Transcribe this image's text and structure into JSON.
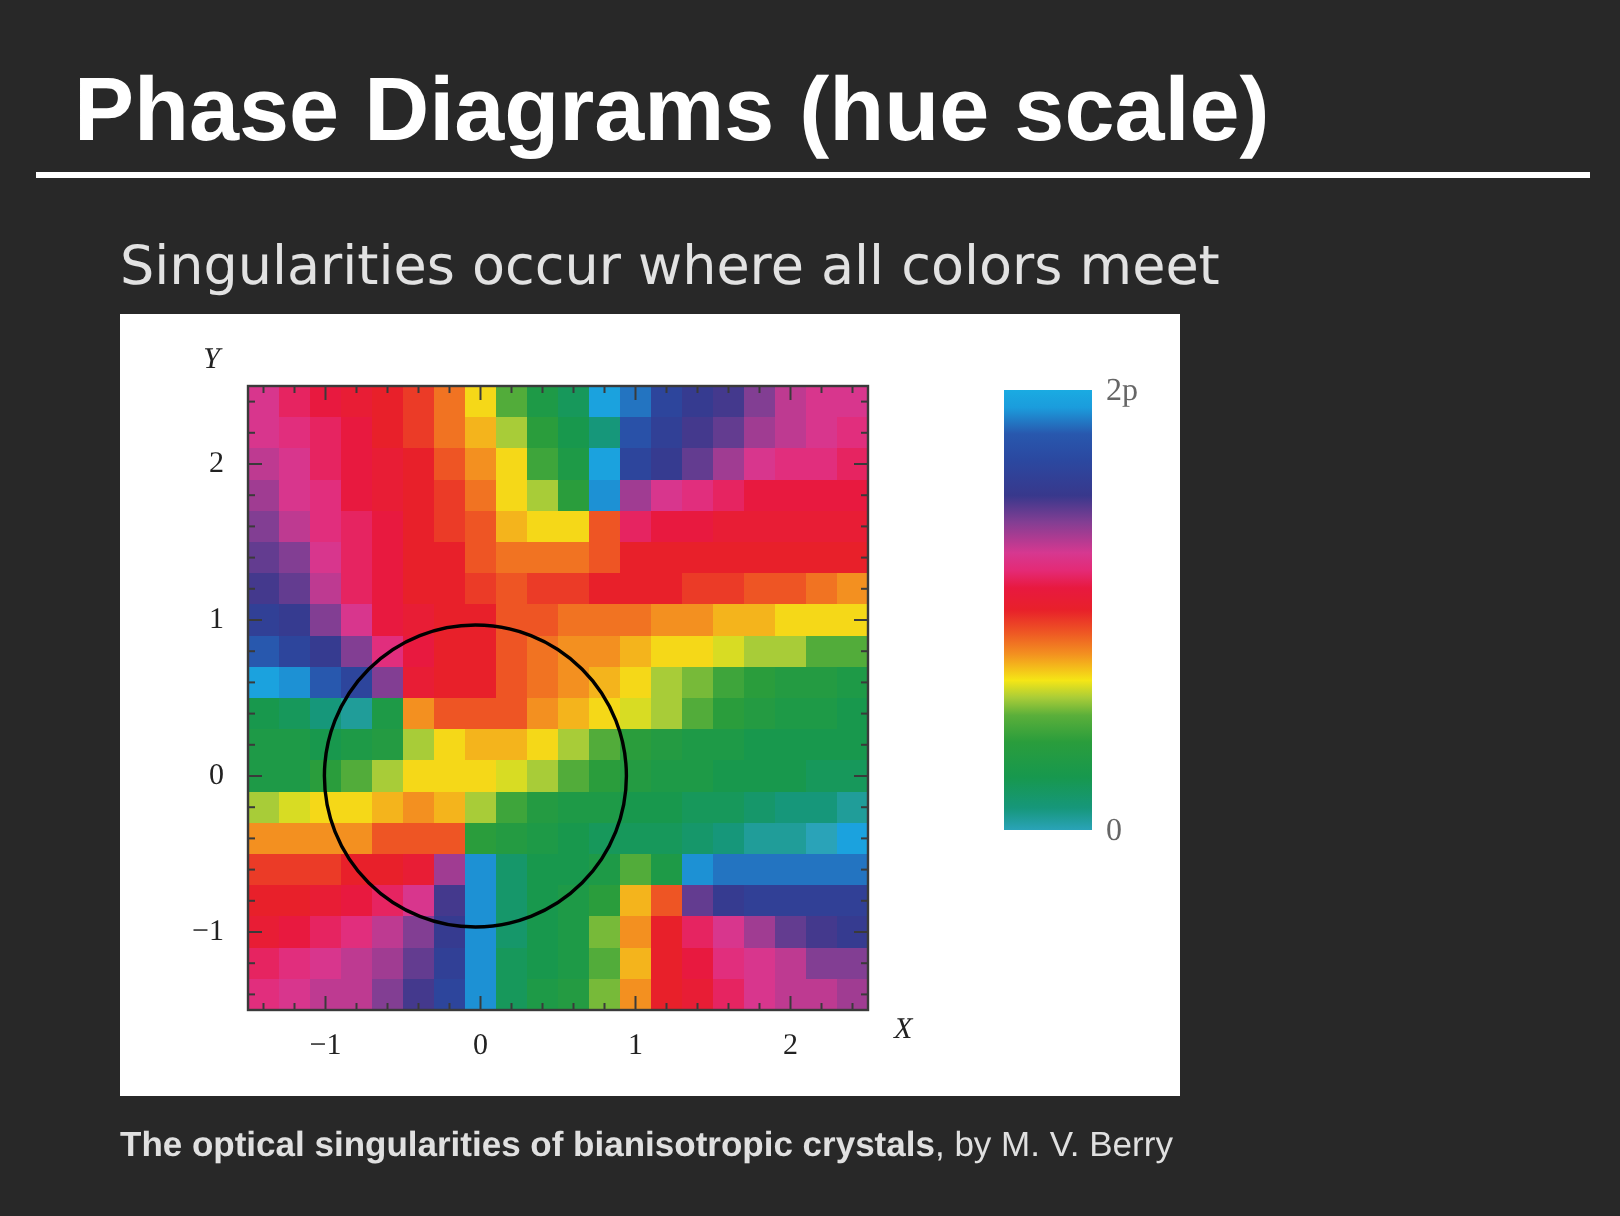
{
  "chart_data": {
    "type": "heatmap",
    "title": "Phase Diagrams (hue scale)",
    "subtitle": "Singularities occur where all colors meet",
    "xlabel": "X",
    "ylabel": "Y",
    "annotations": [
      "The optical singularities of bianisotropic crystals",
      ", by M. V. Berry"
    ],
    "xlim": [
      -1.5,
      2.5
    ],
    "ylim": [
      -1.5,
      2.5
    ],
    "xticks": [
      {
        "value": -1.4,
        "label": null
      },
      {
        "value": -1.2,
        "label": null
      },
      -1,
      {
        "value": -0.8,
        "label": null
      },
      {
        "value": -0.6,
        "label": null
      },
      {
        "value": -0.4,
        "label": null
      },
      {
        "value": -0.2,
        "label": null
      },
      0,
      {
        "value": 0.2,
        "label": null
      },
      {
        "value": 0.4,
        "label": null
      },
      {
        "value": 0.6,
        "label": null
      },
      {
        "value": 0.8,
        "label": null
      },
      1,
      {
        "value": 1.2,
        "label": null
      },
      {
        "value": 1.4,
        "label": null
      },
      {
        "value": 1.6,
        "label": null
      },
      {
        "value": 1.8,
        "label": null
      },
      2,
      {
        "value": 2.2,
        "label": null
      },
      {
        "value": 2.4,
        "label": null
      }
    ],
    "yticks": [
      {
        "value": -1.4,
        "label": null
      },
      {
        "value": -1.2,
        "label": null
      },
      -1,
      {
        "value": -0.8,
        "label": null
      },
      {
        "value": -0.6,
        "label": null
      },
      {
        "value": -0.4,
        "label": null
      },
      {
        "value": -0.2,
        "label": null
      },
      0,
      {
        "value": 0.2,
        "label": null
      },
      {
        "value": 0.4,
        "label": null
      },
      {
        "value": 0.6,
        "label": null
      },
      {
        "value": 0.8,
        "label": null
      },
      1,
      {
        "value": 1.2,
        "label": null
      },
      {
        "value": 1.4,
        "label": null
      },
      {
        "value": 1.6,
        "label": null
      },
      {
        "value": 1.8,
        "label": null
      },
      2,
      {
        "value": 2.2,
        "label": null
      },
      {
        "value": 2.4,
        "label": null
      }
    ],
    "clim": [
      0,
      2
    ],
    "cticks": [
      0,
      {
        "value": 2,
        "label": "2p"
      }
    ],
    "cells": [
      [
        1.25,
        1.15,
        1.1,
        1.05,
        1.0,
        0.95,
        0.85,
        0.7,
        0.5,
        0.3,
        0.2,
        1.95,
        1.85,
        1.65,
        1.55,
        1.5,
        1.4,
        1.3,
        1.25,
        1.25
      ],
      [
        1.25,
        1.2,
        1.15,
        1.1,
        1.0,
        0.95,
        0.85,
        0.75,
        0.6,
        0.4,
        0.25,
        0.1,
        1.75,
        1.6,
        1.5,
        1.45,
        1.35,
        1.3,
        1.25,
        1.2
      ],
      [
        1.3,
        1.25,
        1.15,
        1.1,
        1.05,
        1.0,
        0.9,
        0.8,
        0.7,
        0.45,
        0.3,
        1.95,
        1.65,
        1.55,
        1.45,
        1.35,
        1.25,
        1.2,
        1.2,
        1.15
      ],
      [
        1.35,
        1.25,
        1.2,
        1.1,
        1.05,
        1.0,
        0.95,
        0.85,
        0.7,
        0.6,
        0.4,
        1.9,
        1.35,
        1.25,
        1.2,
        1.15,
        1.1,
        1.1,
        1.1,
        1.1
      ],
      [
        1.4,
        1.3,
        1.2,
        1.15,
        1.1,
        1.0,
        0.95,
        0.9,
        0.75,
        0.7,
        0.7,
        0.9,
        1.15,
        1.1,
        1.1,
        1.05,
        1.05,
        1.05,
        1.05,
        1.05
      ],
      [
        1.45,
        1.4,
        1.25,
        1.15,
        1.1,
        1.0,
        1.0,
        0.9,
        0.85,
        0.85,
        0.85,
        0.9,
        1.0,
        1.0,
        1.0,
        1.0,
        1.0,
        1.0,
        1.0,
        1.0
      ],
      [
        1.5,
        1.45,
        1.3,
        1.15,
        1.1,
        1.0,
        1.0,
        0.95,
        0.9,
        0.95,
        0.95,
        1.0,
        1.0,
        1.0,
        0.95,
        0.95,
        0.9,
        0.9,
        0.85,
        0.8
      ],
      [
        1.6,
        1.55,
        1.4,
        1.25,
        1.1,
        1.05,
        1.0,
        1.0,
        0.9,
        0.9,
        0.85,
        0.85,
        0.85,
        0.8,
        0.8,
        0.75,
        0.75,
        0.7,
        0.7,
        0.7
      ],
      [
        1.8,
        1.65,
        1.55,
        1.4,
        1.2,
        1.1,
        1.0,
        1.0,
        0.9,
        0.85,
        0.8,
        0.8,
        0.75,
        0.7,
        0.7,
        0.65,
        0.6,
        0.6,
        0.5,
        0.5
      ],
      [
        1.95,
        1.9,
        1.8,
        1.65,
        1.4,
        1.05,
        1.0,
        1.0,
        0.9,
        0.85,
        0.8,
        0.75,
        0.7,
        0.6,
        0.55,
        0.45,
        0.4,
        0.35,
        0.35,
        0.3
      ],
      [
        0.25,
        0.2,
        0.1,
        0.05,
        0.3,
        0.8,
        0.9,
        0.9,
        0.9,
        0.8,
        0.75,
        0.7,
        0.65,
        0.6,
        0.5,
        0.4,
        0.35,
        0.3,
        0.3,
        0.25
      ],
      [
        0.3,
        0.3,
        0.25,
        0.3,
        0.35,
        0.6,
        0.7,
        0.75,
        0.75,
        0.7,
        0.6,
        0.5,
        0.4,
        0.35,
        0.3,
        0.3,
        0.25,
        0.25,
        0.25,
        0.25
      ],
      [
        0.3,
        0.3,
        0.4,
        0.5,
        0.6,
        0.7,
        0.7,
        0.7,
        0.65,
        0.6,
        0.5,
        0.4,
        0.35,
        0.3,
        0.3,
        0.25,
        0.25,
        0.25,
        0.2,
        0.2
      ],
      [
        0.6,
        0.65,
        0.7,
        0.7,
        0.75,
        0.8,
        0.75,
        0.6,
        0.45,
        0.35,
        0.3,
        0.3,
        0.25,
        0.25,
        0.2,
        0.2,
        0.15,
        0.1,
        0.1,
        0.05
      ],
      [
        0.8,
        0.8,
        0.8,
        0.8,
        0.9,
        0.9,
        0.9,
        0.4,
        0.35,
        0.3,
        0.25,
        0.2,
        0.2,
        0.2,
        0.15,
        0.1,
        0.05,
        0.05,
        0.0,
        1.95
      ],
      [
        0.95,
        0.95,
        0.95,
        1.0,
        1.0,
        1.05,
        1.35,
        1.9,
        0.15,
        0.25,
        0.25,
        0.3,
        0.5,
        0.3,
        1.9,
        1.85,
        1.85,
        1.85,
        1.85,
        1.85
      ],
      [
        1.0,
        1.0,
        1.05,
        1.1,
        1.15,
        1.25,
        1.5,
        1.9,
        0.15,
        0.25,
        0.3,
        0.4,
        0.75,
        0.9,
        1.45,
        1.55,
        1.6,
        1.6,
        1.6,
        1.6
      ],
      [
        1.05,
        1.1,
        1.15,
        1.2,
        1.3,
        1.4,
        1.55,
        1.9,
        0.15,
        0.25,
        0.3,
        0.55,
        0.8,
        1.0,
        1.15,
        1.25,
        1.35,
        1.45,
        1.5,
        1.55
      ],
      [
        1.15,
        1.2,
        1.25,
        1.3,
        1.35,
        1.45,
        1.6,
        1.9,
        0.2,
        0.25,
        0.3,
        0.5,
        0.75,
        1.0,
        1.1,
        1.2,
        1.25,
        1.3,
        1.4,
        1.4
      ],
      [
        1.2,
        1.25,
        1.3,
        1.3,
        1.4,
        1.5,
        1.65,
        1.9,
        0.2,
        0.3,
        0.35,
        0.55,
        0.8,
        1.0,
        1.05,
        1.15,
        1.25,
        1.3,
        1.3,
        1.35
      ]
    ]
  }
}
